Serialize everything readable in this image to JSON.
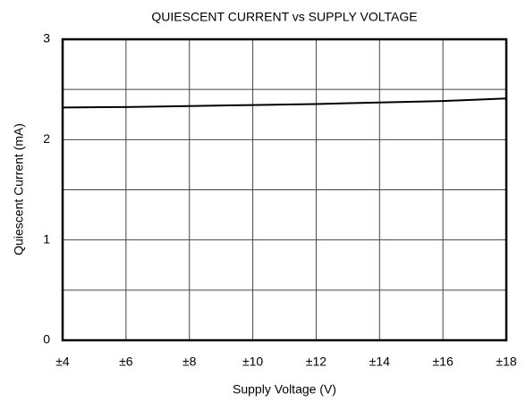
{
  "chart_data": {
    "type": "line",
    "title": "QUIESCENT CURRENT vs SUPPLY VOLTAGE",
    "x_label": "Supply Voltage (V)",
    "y_label": "Quiescent Current (mA)",
    "x": [
      4,
      6,
      8,
      10,
      12,
      14,
      16,
      18
    ],
    "series": [
      {
        "name": "Quiescent Current",
        "color": "#000000",
        "values": [
          2.32,
          2.325,
          2.335,
          2.345,
          2.355,
          2.37,
          2.385,
          2.41
        ]
      }
    ],
    "xlim": [
      4,
      18
    ],
    "xticks": [
      {
        "value": 4,
        "label": "±4"
      },
      {
        "value": 6,
        "label": "±6"
      },
      {
        "value": 8,
        "label": "±8"
      },
      {
        "value": 10,
        "label": "±10"
      },
      {
        "value": 12,
        "label": "±12"
      },
      {
        "value": 14,
        "label": "±14"
      },
      {
        "value": 16,
        "label": "±16"
      },
      {
        "value": 18,
        "label": "±18"
      }
    ],
    "ylim": [
      0,
      3
    ],
    "yticks": [
      0,
      1,
      2,
      3
    ],
    "minor_yticks": [
      0.5,
      1.5,
      2.5
    ],
    "grid": true
  }
}
